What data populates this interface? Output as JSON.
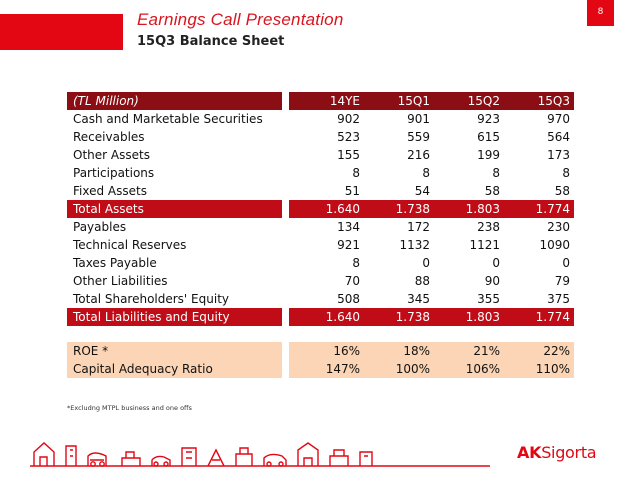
{
  "header": {
    "title": "Earnings Call Presentation",
    "subtitle": "15Q3 Balance Sheet",
    "page_number": "8"
  },
  "table": {
    "unit_label": "(TL Million)",
    "columns": [
      "14YE",
      "15Q1",
      "15Q2",
      "15Q3"
    ],
    "rows": [
      {
        "label": "Cash and Marketable Securities",
        "values": [
          "902",
          "901",
          "923",
          "970"
        ],
        "style": "normal"
      },
      {
        "label": "Receivables",
        "values": [
          "523",
          "559",
          "615",
          "564"
        ],
        "style": "normal"
      },
      {
        "label": "Other Assets",
        "values": [
          "155",
          "216",
          "199",
          "173"
        ],
        "style": "normal"
      },
      {
        "label": "Participations",
        "values": [
          "8",
          "8",
          "8",
          "8"
        ],
        "style": "normal"
      },
      {
        "label": "Fixed Assets",
        "values": [
          "51",
          "54",
          "58",
          "58"
        ],
        "style": "normal"
      },
      {
        "label": "Total Assets",
        "values": [
          "1.640",
          "1.738",
          "1.803",
          "1.774"
        ],
        "style": "total"
      },
      {
        "label": "Payables",
        "values": [
          "134",
          "172",
          "238",
          "230"
        ],
        "style": "normal"
      },
      {
        "label": "Technical Reserves",
        "values": [
          "921",
          "1132",
          "1121",
          "1090"
        ],
        "style": "normal"
      },
      {
        "label": "Taxes Payable",
        "values": [
          "8",
          "0",
          "0",
          "0"
        ],
        "style": "normal"
      },
      {
        "label": "Other Liabilities",
        "values": [
          "70",
          "88",
          "90",
          "79"
        ],
        "style": "normal"
      },
      {
        "label": "Total Shareholders' Equity",
        "values": [
          "508",
          "345",
          "355",
          "375"
        ],
        "style": "normal"
      },
      {
        "label": "Total Liabilities and Equity",
        "values": [
          "1.640",
          "1.738",
          "1.803",
          "1.774"
        ],
        "style": "total"
      }
    ],
    "ratios": [
      {
        "label": "ROE *",
        "values": [
          "16%",
          "18%",
          "21%",
          "22%"
        ]
      },
      {
        "label": "Capital Adequacy Ratio",
        "values": [
          "147%",
          "100%",
          "106%",
          "110%"
        ]
      }
    ]
  },
  "footnote": "*Excludng MTPL business and one offs",
  "footer": {
    "logo_text": "AKSigorta",
    "logo_part1": "AK",
    "logo_part2": "Sigorta",
    "illustration": "house-car-skyline-icon"
  },
  "colors": {
    "brand_red": "#e30613",
    "header_dark_red": "#8b0e14",
    "total_red": "#c00c16",
    "ratio_peach": "#fbd5b5"
  }
}
